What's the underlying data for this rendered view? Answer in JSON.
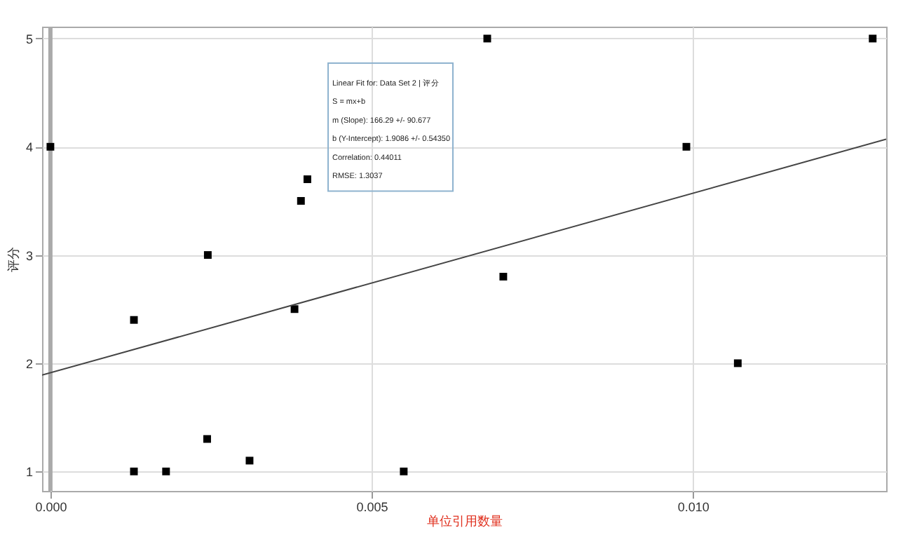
{
  "chart_data": {
    "type": "scatter",
    "xlabel": "单位引用数量",
    "ylabel": "评分",
    "annotations": [
      "Linear Fit for: Data Set 2 | 评分",
      "S = mx+b",
      "m (Slope): 166.29 +/- 90.677",
      "b (Y-Intercept): 1.9086 +/- 0.54350",
      "Correlation: 0.44011",
      "RMSE: 1.3037"
    ],
    "xlim": [
      -0.00013,
      0.01301
    ],
    "ylim": [
      0.82,
      5.11
    ],
    "xticks": [
      {
        "value": 0,
        "label": "0.000"
      },
      {
        "value": 0.005,
        "label": "0.005"
      },
      {
        "value": 0.01,
        "label": "0.010"
      }
    ],
    "yticks": [
      1,
      2,
      3,
      4,
      5
    ],
    "grid": true,
    "marker": "square",
    "ref_lines": [
      {
        "axis": "x",
        "value": 0,
        "color": "#aaaaaa"
      }
    ],
    "series": [
      {
        "color": "#000000",
        "x": [
          0,
          0.0013,
          0.0013,
          0.0018,
          0.00245,
          0.00244,
          0.0031,
          0.0038,
          0.0039,
          0.004,
          0.0055,
          0.0068,
          0.00705,
          0.0099,
          0.0107,
          0.0128
        ],
        "values": [
          4,
          2.4,
          1,
          1,
          3,
          1.3,
          1.1,
          2.5,
          3.5,
          3.7,
          1,
          5,
          2.8,
          4,
          2,
          5
        ]
      },
      {
        "type": "line",
        "marker": "none",
        "color": "#444444",
        "x": [
          -0.00013,
          0.01301
        ],
        "values": [
          1.89,
          4.07
        ]
      }
    ]
  }
}
